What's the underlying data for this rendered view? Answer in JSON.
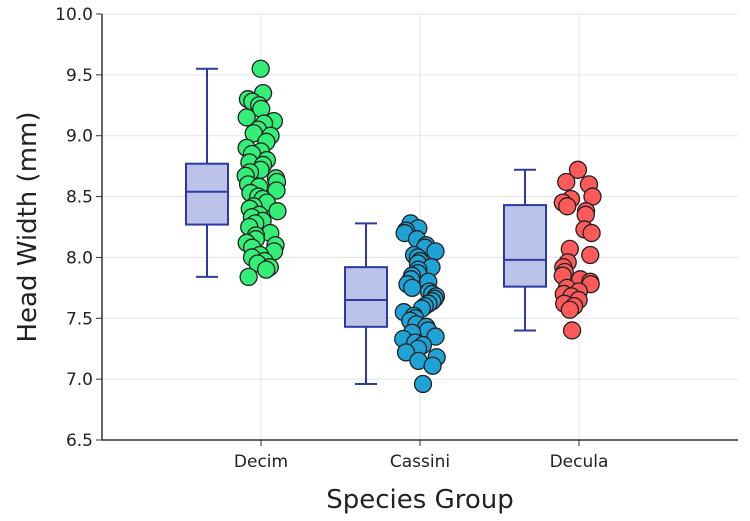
{
  "chart_data": {
    "type": "box+strip",
    "xlabel": "Species Group",
    "ylabel": "Head Width (mm)",
    "ylim": [
      6.5,
      10.0
    ],
    "yticks": [
      "6.5",
      "7.0",
      "7.5",
      "8.0",
      "8.5",
      "9.0",
      "9.5",
      "10.0"
    ],
    "categories": [
      "Decim",
      "Cassini",
      "Decula"
    ],
    "grid": true,
    "box_color": {
      "fill": "#bcc3e8",
      "stroke": "#2b3aa6"
    },
    "series": [
      {
        "category": "Decim",
        "color": "#33ee77",
        "box": {
          "min": 7.84,
          "q1": 8.27,
          "median": 8.54,
          "q3": 8.77,
          "max": 9.55
        },
        "values": [
          9.55,
          9.35,
          9.3,
          9.28,
          9.25,
          9.22,
          9.15,
          9.12,
          9.1,
          9.05,
          9.02,
          9.0,
          8.95,
          8.9,
          8.87,
          8.85,
          8.8,
          8.78,
          8.76,
          8.72,
          8.7,
          8.67,
          8.65,
          8.62,
          8.6,
          8.58,
          8.55,
          8.53,
          8.5,
          8.48,
          8.45,
          8.42,
          8.4,
          8.38,
          8.35,
          8.33,
          8.3,
          8.28,
          8.25,
          8.2,
          8.18,
          8.15,
          8.12,
          8.1,
          8.08,
          8.05,
          8.02,
          8.0,
          7.97,
          7.95,
          7.92,
          7.9,
          7.84
        ]
      },
      {
        "category": "Cassini",
        "color": "#1fa3d6",
        "box": {
          "min": 6.96,
          "q1": 7.43,
          "median": 7.65,
          "q3": 7.92,
          "max": 8.28
        },
        "values": [
          8.28,
          8.24,
          8.22,
          8.2,
          8.15,
          8.1,
          8.08,
          8.05,
          8.02,
          8.0,
          7.97,
          7.95,
          7.92,
          7.9,
          7.87,
          7.85,
          7.82,
          7.8,
          7.78,
          7.75,
          7.72,
          7.7,
          7.68,
          7.66,
          7.64,
          7.62,
          7.6,
          7.58,
          7.55,
          7.52,
          7.5,
          7.48,
          7.45,
          7.43,
          7.4,
          7.38,
          7.35,
          7.33,
          7.3,
          7.28,
          7.25,
          7.22,
          7.18,
          7.15,
          7.11,
          6.96
        ]
      },
      {
        "category": "Decula",
        "color": "#ff5a5a",
        "box": {
          "min": 7.4,
          "q1": 7.76,
          "median": 7.98,
          "q3": 8.43,
          "max": 8.72
        },
        "values": [
          8.72,
          8.62,
          8.6,
          8.5,
          8.48,
          8.45,
          8.42,
          8.38,
          8.35,
          8.23,
          8.2,
          8.07,
          8.02,
          7.96,
          7.92,
          7.88,
          7.85,
          7.82,
          7.8,
          7.78,
          7.75,
          7.72,
          7.7,
          7.68,
          7.65,
          7.62,
          7.6,
          7.57,
          7.4
        ]
      }
    ]
  }
}
